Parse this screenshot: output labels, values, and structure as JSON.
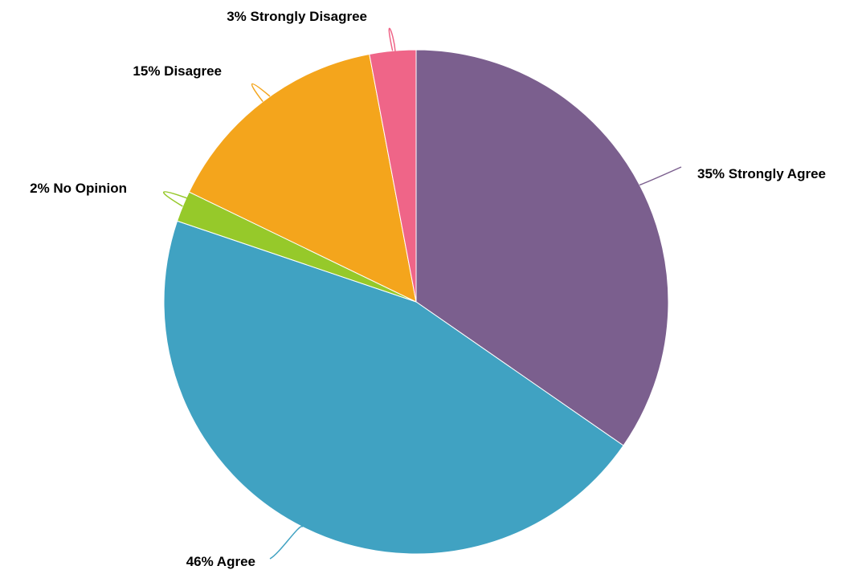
{
  "chart_data": {
    "type": "pie",
    "title": "",
    "start_angle_deg": 0,
    "direction": "clockwise",
    "slices": [
      {
        "label": "Strongly Agree",
        "value": 35,
        "display": "35% Strongly Agree",
        "color": "#7B5F8E"
      },
      {
        "label": "Agree",
        "value": 46,
        "display": "46% Agree",
        "color": "#40A2C2"
      },
      {
        "label": "No Opinion",
        "value": 2,
        "display": "2% No Opinion",
        "color": "#96C92A"
      },
      {
        "label": "Disagree",
        "value": 15,
        "display": "15% Disagree",
        "color": "#F4A51C"
      },
      {
        "label": "Strongly Disagree",
        "value": 3,
        "display": "3% Strongly Disagree",
        "color": "#EF6588"
      }
    ]
  }
}
